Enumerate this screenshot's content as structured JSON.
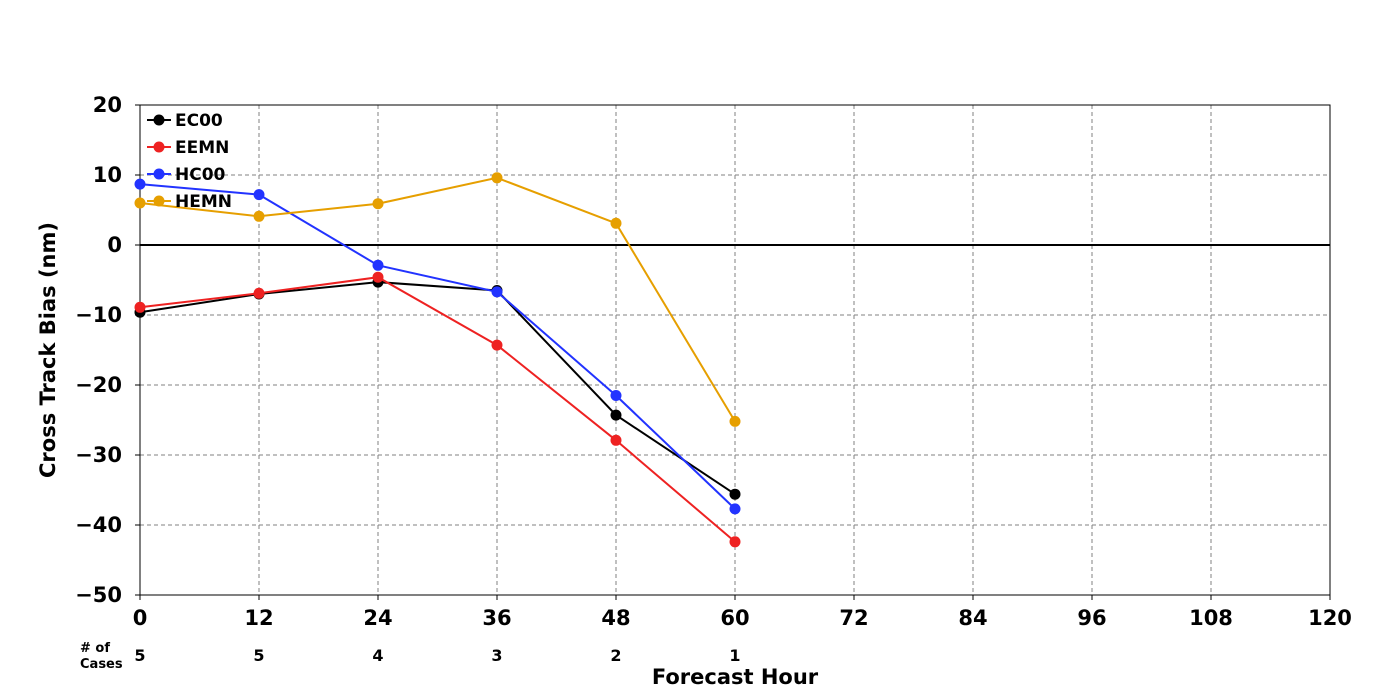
{
  "chart_data": {
    "type": "line",
    "title": "",
    "xlabel": "Forecast Hour",
    "ylabel": "Cross Track Bias (nm)",
    "xlim": [
      0,
      120
    ],
    "ylim": [
      -50,
      20
    ],
    "x_ticks": [
      "0",
      "12",
      "24",
      "36",
      "48",
      "60",
      "72",
      "84",
      "96",
      "108",
      "120"
    ],
    "y_ticks": [
      "20",
      "10",
      "0",
      "−10",
      "−20",
      "−30",
      "−40",
      "−50"
    ],
    "grid": true,
    "legend_position": "top-left",
    "cases_header": [
      "# of",
      "Cases"
    ],
    "cases": [
      {
        "x": 0,
        "label": "5"
      },
      {
        "x": 12,
        "label": "5"
      },
      {
        "x": 24,
        "label": "4"
      },
      {
        "x": 36,
        "label": "3"
      },
      {
        "x": 48,
        "label": "2"
      },
      {
        "x": 60,
        "label": "1"
      }
    ],
    "x": [
      0,
      12,
      24,
      36,
      48,
      60
    ],
    "series": [
      {
        "name": "EC00",
        "color": "#000000",
        "values": [
          -9.6,
          -7.0,
          -5.3,
          -6.5,
          -24.3,
          -35.6
        ]
      },
      {
        "name": "EEMN",
        "color": "#ee2222",
        "values": [
          -8.9,
          -6.9,
          -4.6,
          -14.3,
          -27.9,
          -42.4
        ]
      },
      {
        "name": "HC00",
        "color": "#2233ff",
        "values": [
          8.7,
          7.2,
          -2.9,
          -6.7,
          -21.5,
          -37.7
        ]
      },
      {
        "name": "HEMN",
        "color": "#e69f00",
        "values": [
          6.0,
          4.1,
          5.9,
          9.6,
          3.1,
          -25.2
        ]
      }
    ]
  }
}
